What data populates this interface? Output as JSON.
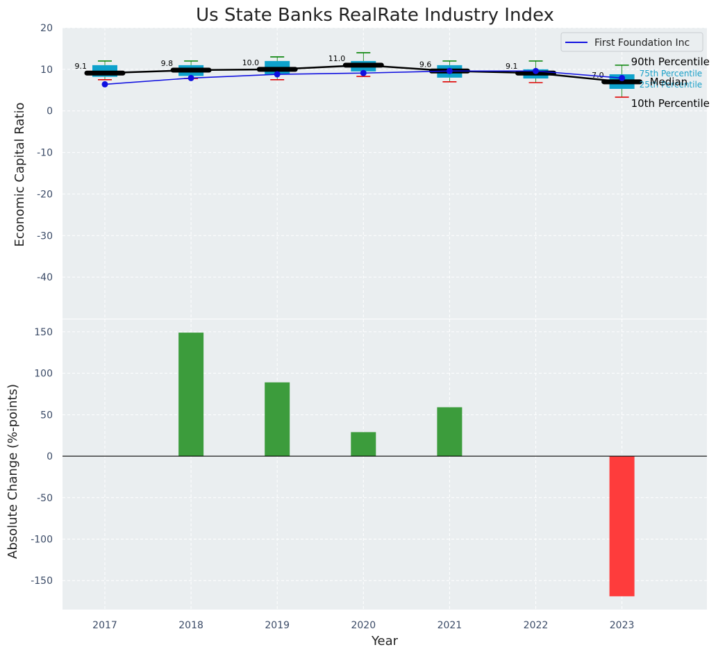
{
  "chart_data": {
    "type": "box-line-bar",
    "title": "Us State Banks RealRate Industry Index",
    "xlabel": "Year",
    "colors": {
      "panel_bg": "#eaeef0",
      "box": "#0ea2cc",
      "median": "#000000",
      "company_line": "#1010e0",
      "whisker_high": "#008000",
      "whisker_low": "#e00000",
      "bar_positive": "#3c9c3c",
      "bar_negative": "#fe3c3c",
      "grid": "#ffffff"
    },
    "top_panel": {
      "ylabel": "Economic Capital Ratio",
      "ylim": [
        -50,
        20
      ],
      "yticks": [
        20,
        10,
        0,
        -10,
        -20,
        -30,
        -40
      ],
      "years": [
        "2017",
        "2018",
        "2019",
        "2020",
        "2021",
        "2022",
        "2023"
      ],
      "boxes": [
        {
          "year": "2017",
          "p10": 7.5,
          "p25": 8.2,
          "median": 9.1,
          "p75": 11.0,
          "p90": 12.0,
          "label": "9.1"
        },
        {
          "year": "2018",
          "p10": 7.8,
          "p25": 8.4,
          "median": 9.8,
          "p75": 11.0,
          "p90": 12.0,
          "label": "9.8"
        },
        {
          "year": "2019",
          "p10": 7.5,
          "p25": 8.8,
          "median": 10.0,
          "p75": 12.0,
          "p90": 13.0,
          "label": "10.0"
        },
        {
          "year": "2020",
          "p10": 8.3,
          "p25": 9.5,
          "median": 11.0,
          "p75": 12.0,
          "p90": 14.0,
          "label": "11.0"
        },
        {
          "year": "2021",
          "p10": 7.0,
          "p25": 8.0,
          "median": 9.6,
          "p75": 11.0,
          "p90": 12.0,
          "label": "9.6"
        },
        {
          "year": "2022",
          "p10": 6.8,
          "p25": 7.8,
          "median": 9.1,
          "p75": 10.0,
          "p90": 12.0,
          "label": "9.1"
        },
        {
          "year": "2023",
          "p10": 3.3,
          "p25": 5.3,
          "median": 7.0,
          "p75": 8.8,
          "p90": 11.0,
          "label": "7.0"
        }
      ],
      "company_series": {
        "name": "First Foundation Inc",
        "values": [
          6.4,
          7.9,
          8.8,
          9.1,
          9.6,
          9.6,
          7.9
        ]
      },
      "annotations": {
        "p90": "90th Percentile",
        "p75": "75th Percentile",
        "median": "Median",
        "p25": "25th Percentile",
        "p10": "10th Percentile"
      },
      "legend": {
        "position": "top-right",
        "entries": [
          "First Foundation Inc"
        ]
      }
    },
    "bottom_panel": {
      "type": "bar",
      "ylabel": "Absolute Change (%-points)",
      "ylim": [
        -185,
        165
      ],
      "yticks": [
        150,
        100,
        50,
        0,
        -50,
        -100,
        -150
      ],
      "categories": [
        "2017",
        "2018",
        "2019",
        "2020",
        "2021",
        "2022",
        "2023"
      ],
      "values": [
        0,
        149,
        89,
        29,
        59,
        0,
        -169
      ]
    }
  }
}
